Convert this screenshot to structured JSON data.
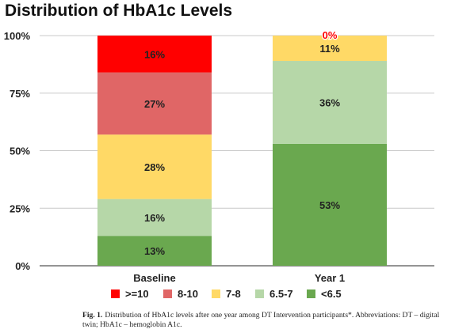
{
  "chart_data": {
    "type": "bar",
    "stacked": true,
    "title": "Distribution of HbA1c Levels",
    "xlabel": "",
    "ylabel": "",
    "categories": [
      "Baseline",
      "Year 1"
    ],
    "ylim": [
      0,
      100
    ],
    "y_ticks": [
      "0%",
      "25%",
      "50%",
      "75%",
      "100%"
    ],
    "grid": "horizontal",
    "legend_position": "bottom",
    "series": [
      {
        "name": "<6.5",
        "color": "#6aa84f",
        "values": [
          13,
          53
        ],
        "labels": [
          "13%",
          "53%"
        ]
      },
      {
        "name": "6.5-7",
        "color": "#b6d7a8",
        "values": [
          16,
          36
        ],
        "labels": [
          "16%",
          "36%"
        ]
      },
      {
        "name": "7-8",
        "color": "#ffd966",
        "values": [
          28,
          11
        ],
        "labels": [
          "28%",
          "11%"
        ]
      },
      {
        "name": "8-10",
        "color": "#e06666",
        "values": [
          27,
          0
        ],
        "labels": [
          "27%",
          ""
        ]
      },
      {
        "name": ">=10",
        "color": "#ff0000",
        "values": [
          16,
          0
        ],
        "labels": [
          "16%",
          "0%"
        ]
      }
    ],
    "legend_order": [
      ">=10",
      "8-10",
      "7-8",
      "6.5-7",
      "<6.5"
    ]
  },
  "caption": {
    "label": "Fig. 1.",
    "text": "Distribution of HbA1c levels after one year among DT Intervention participants*. Abbreviations: DT – digital twin; HbA1c – hemoglobin A1c."
  }
}
